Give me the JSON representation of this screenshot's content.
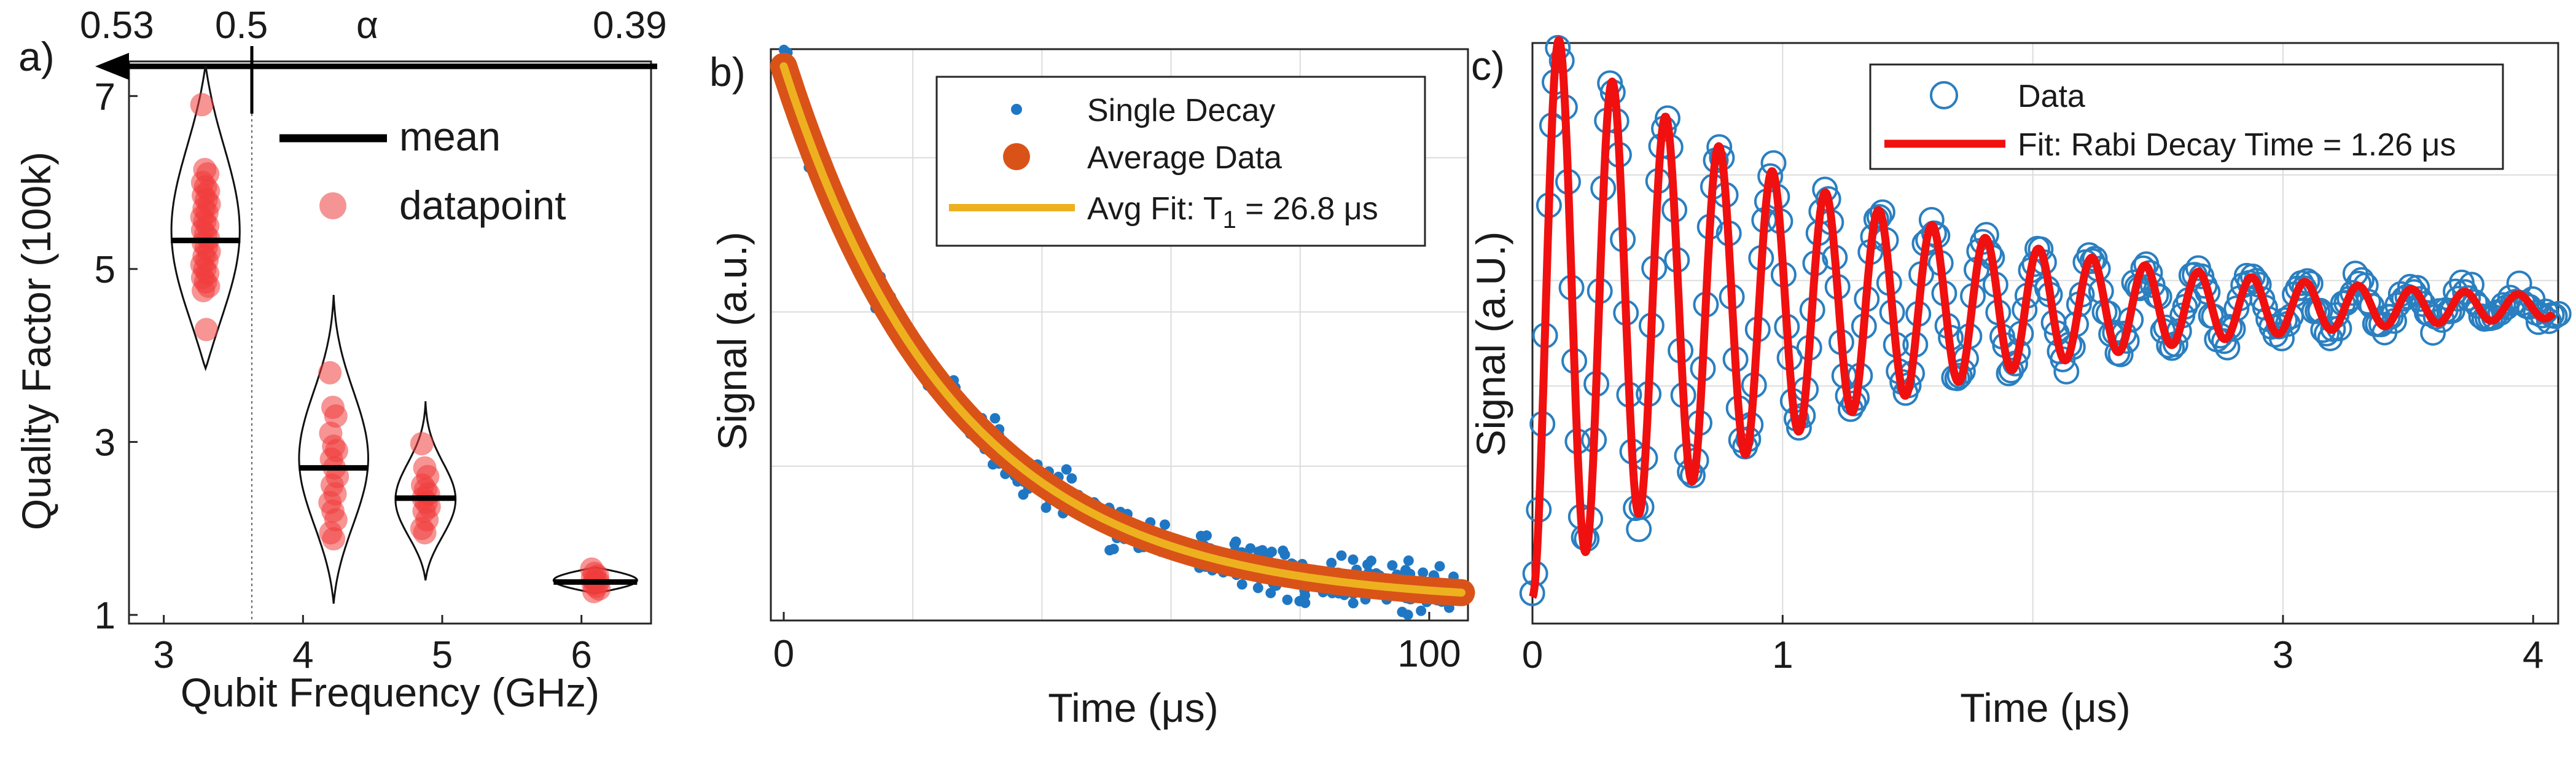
{
  "colors": {
    "violin_points": "#f03c3c",
    "mean_line": "#000000",
    "single_decay": "#1f77c4",
    "average_data": "#d95319",
    "avg_fit": "#edb120",
    "rabi_data": "#2a7fc0",
    "rabi_fit": "#f01010"
  },
  "chart_data": [
    {
      "panel": "a)",
      "type": "violin",
      "xlabel": "Qubit Frequency (GHz)",
      "ylabel": "Quality Factor (100k)",
      "xlim": [
        2.75,
        6.5
      ],
      "ylim": [
        0.9,
        7.4
      ],
      "xticks": [
        "3",
        "4",
        "5",
        "6"
      ],
      "yticks": [
        "1",
        "3",
        "5",
        "7"
      ],
      "top_axis": {
        "label": "α",
        "ticks": [
          "0.53",
          "0.5",
          "0.39"
        ],
        "direction": "left"
      },
      "legend": {
        "position": "top-right",
        "mean_label": "mean",
        "point_label": "datapoint"
      },
      "groups": [
        {
          "x": 3.3,
          "mean": 5.33,
          "min": 3.85,
          "max": 7.35,
          "width": 0.25,
          "shape": "violinA",
          "points": [
            6.9,
            6.15,
            6.1,
            6.0,
            5.95,
            5.9,
            5.85,
            5.8,
            5.75,
            5.7,
            5.65,
            5.6,
            5.55,
            5.5,
            5.45,
            5.4,
            5.35,
            5.3,
            5.25,
            5.2,
            5.15,
            5.1,
            5.05,
            5.0,
            4.95,
            4.9,
            4.85,
            4.8,
            4.75,
            4.3
          ]
        },
        {
          "x": 4.22,
          "mean": 2.7,
          "min": 1.13,
          "max": 4.7,
          "width": 0.25,
          "shape": "violinB",
          "points": [
            3.8,
            3.4,
            3.3,
            3.1,
            2.95,
            2.9,
            2.8,
            2.7,
            2.6,
            2.5,
            2.4,
            2.3,
            2.2,
            2.1,
            1.95,
            1.88
          ]
        },
        {
          "x": 4.88,
          "mean": 2.35,
          "min": 1.4,
          "max": 3.47,
          "width": 0.22,
          "shape": "violinC",
          "points": [
            2.98,
            2.7,
            2.6,
            2.5,
            2.45,
            2.4,
            2.35,
            2.3,
            2.25,
            2.2,
            2.1,
            2.0,
            1.95
          ]
        },
        {
          "x": 6.1,
          "mean": 1.38,
          "min": 1.25,
          "max": 1.55,
          "width": 0.3,
          "shape": "violinD",
          "points": [
            1.53,
            1.48,
            1.45,
            1.42,
            1.4,
            1.38,
            1.36,
            1.33,
            1.3,
            1.27
          ]
        }
      ]
    },
    {
      "panel": "b)",
      "type": "scatter+line",
      "xlabel": "Time (μs)",
      "ylabel": "Signal (a.u.)",
      "xlim": [
        -2,
        106
      ],
      "ylim": [
        0,
        1
      ],
      "xticks": [
        "0",
        "100"
      ],
      "legend": {
        "position": "top-right",
        "entries": [
          "Single Decay",
          "Average Data",
          "Avg Fit: T",
          "1",
          " = 26.8 μs"
        ]
      },
      "model": {
        "form": "exponential decay",
        "T1": 26.8,
        "start": 0.97,
        "offset": 0.03,
        "amplitude": 0.94,
        "noise_amplitude": 0.045
      },
      "series": [
        {
          "name": "Single Decay",
          "style": "scatter",
          "n_points": 400,
          "x_range": [
            0,
            105
          ]
        },
        {
          "name": "Average Data",
          "style": "thick-line"
        },
        {
          "name": "Avg Fit: T1 = 26.8 μs",
          "style": "line"
        }
      ]
    },
    {
      "panel": "c)",
      "type": "scatter+line",
      "xlabel": "Time (μs)",
      "ylabel": "Signal (a.U.)",
      "xlim": [
        0,
        4.1
      ],
      "ylim": [
        -0.05,
        1.05
      ],
      "xticks": [
        "0",
        "1",
        "3",
        "4"
      ],
      "legend": {
        "position": "top-right",
        "entries": [
          "Data",
          "Fit: Rabi Decay Time = 1.26 μs"
        ]
      },
      "model": {
        "form": "damped cosine",
        "decay_time": 1.26,
        "period": 0.213,
        "baseline": 0.55,
        "amplitude": 0.55,
        "noise_amplitude": 0.03
      },
      "series": [
        {
          "name": "Data",
          "style": "open-circles",
          "n_points": 320,
          "x_range": [
            0,
            4.1
          ]
        },
        {
          "name": "Fit: Rabi Decay Time = 1.26 μs",
          "style": "line"
        }
      ]
    }
  ]
}
